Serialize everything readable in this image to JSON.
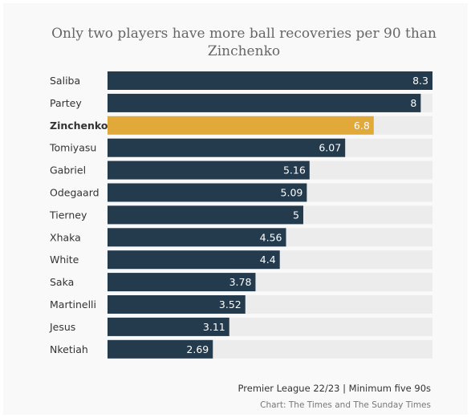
{
  "title": "Only two players have more ball recoveries per 90 than Zinchenko",
  "footer": {
    "note": "Premier League 22/23 | Minimum five 90s",
    "source": "Chart: The Times and The Sunday Times"
  },
  "colors": {
    "bar": "#243a4d",
    "highlight": "#e1a93a",
    "track": "#ececec",
    "label": "#333333",
    "value": "#ffffff",
    "title": "#666666"
  },
  "chart_data": {
    "type": "bar",
    "orientation": "horizontal",
    "title": "Only two players have more ball recoveries per 90 than Zinchenko",
    "categories": [
      "Saliba",
      "Partey",
      "Zinchenko",
      "Tomiyasu",
      "Gabriel",
      "Odegaard",
      "Tierney",
      "Xhaka",
      "White",
      "Saka",
      "Martinelli",
      "Jesus",
      "Nketiah"
    ],
    "values": [
      8.3,
      8,
      6.8,
      6.07,
      5.16,
      5.09,
      5,
      4.56,
      4.4,
      3.78,
      3.52,
      3.11,
      2.69
    ],
    "value_labels": [
      "8.3",
      "8",
      "6.8",
      "6.07",
      "5.16",
      "5.09",
      "5",
      "4.56",
      "4.4",
      "3.78",
      "3.52",
      "3.11",
      "2.69"
    ],
    "highlight": "Zinchenko",
    "xlim": [
      0,
      8.3
    ],
    "xlabel": "",
    "ylabel": "",
    "grid": false,
    "legend": "none"
  }
}
